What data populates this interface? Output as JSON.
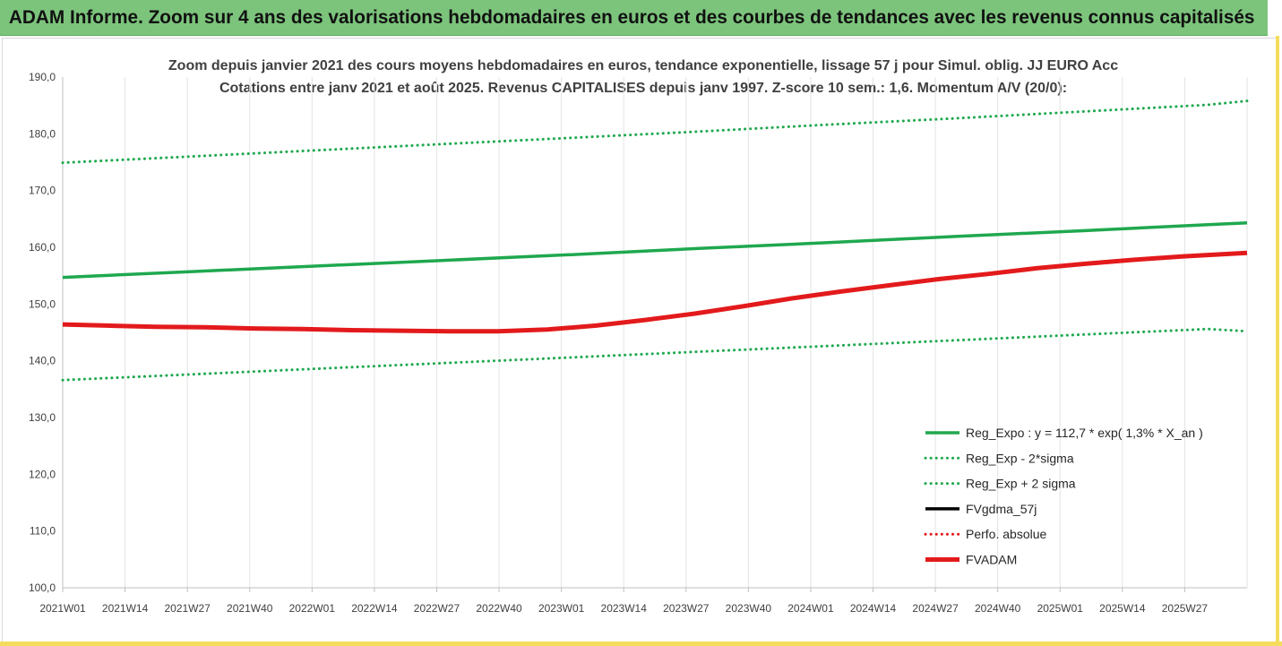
{
  "banner": {
    "title": "ADAM Informe. Zoom sur 4 ans des valorisations hebdomadaires en euros et des courbes de tendances avec les revenus connus capitalisés"
  },
  "chart_data": {
    "type": "line",
    "title": "Zoom depuis janvier 2021 des cours moyens hebdomadaires en euros, tendance exponentielle, lissage 57 j pour Simul. oblig. JJ EURO Acc",
    "subtitle": "Cotations entre janv 2021 et août 2025. Revenus CAPITALISES depuis janv 1997. Z-score 10 sem.: 1,6. Momentum A/V (20/0):",
    "xlabel": "",
    "ylabel": "",
    "ylim": [
      100,
      190
    ],
    "yticks": [
      "100,0",
      "110,0",
      "120,0",
      "130,0",
      "140,0",
      "150,0",
      "160,0",
      "170,0",
      "180,0",
      "190,0"
    ],
    "x_ticks": [
      "2021W01",
      "2021W14",
      "2021W27",
      "2021W40",
      "2022W01",
      "2022W14",
      "2022W27",
      "2022W40",
      "2023W01",
      "2023W14",
      "2023W27",
      "2023W40",
      "2024W01",
      "2024W14",
      "2024W27",
      "2024W40",
      "2025W01",
      "2025W14",
      "2025W27"
    ],
    "x_range_weeks": [
      1,
      243
    ],
    "grid": "vertical",
    "legend_position": "bottom-right",
    "series": [
      {
        "name": "Reg_Expo : y = 112,7 * exp( 1,3% *  X_an )",
        "color": "#1fa84f",
        "style": "solid",
        "x": [
          1,
          27,
          53,
          79,
          105,
          131,
          157,
          183,
          209,
          235,
          243
        ],
        "y": [
          154.7,
          155.7,
          156.7,
          157.7,
          158.7,
          159.8,
          160.8,
          161.9,
          162.9,
          164.0,
          164.3
        ]
      },
      {
        "name": "Reg_Exp - 2*sigma",
        "color": "#1fa84f",
        "style": "dotted",
        "x": [
          1,
          27,
          53,
          79,
          105,
          131,
          157,
          183,
          209,
          235,
          243
        ],
        "y": [
          136.6,
          137.6,
          138.6,
          139.6,
          140.6,
          141.6,
          142.6,
          143.6,
          144.6,
          145.6,
          145.2
        ]
      },
      {
        "name": "Reg_Exp + 2 sigma",
        "color": "#1fa84f",
        "style": "dotted",
        "x": [
          1,
          27,
          53,
          79,
          105,
          131,
          157,
          183,
          209,
          235,
          243
        ],
        "y": [
          174.9,
          176.0,
          177.1,
          178.2,
          179.3,
          180.4,
          181.6,
          182.7,
          183.9,
          185.1,
          185.8
        ]
      },
      {
        "name": "FVgdma_57j",
        "color": "#000000",
        "style": "solid",
        "x": [],
        "y": []
      },
      {
        "name": "Perfo. absolue",
        "color": "#e31a1c",
        "style": "dotted",
        "x": [],
        "y": []
      },
      {
        "name": "FVADAM",
        "color": "#e31a1c",
        "style": "solid-thick",
        "x": [
          1,
          10,
          20,
          30,
          40,
          50,
          60,
          70,
          80,
          90,
          100,
          110,
          120,
          130,
          140,
          150,
          160,
          170,
          180,
          190,
          200,
          210,
          220,
          230,
          243
        ],
        "y": [
          146.4,
          146.2,
          146.0,
          145.9,
          145.7,
          145.6,
          145.4,
          145.3,
          145.2,
          145.2,
          145.5,
          146.2,
          147.2,
          148.3,
          149.6,
          151.0,
          152.2,
          153.3,
          154.4,
          155.3,
          156.3,
          157.1,
          157.8,
          158.4,
          159.0
        ]
      }
    ]
  }
}
